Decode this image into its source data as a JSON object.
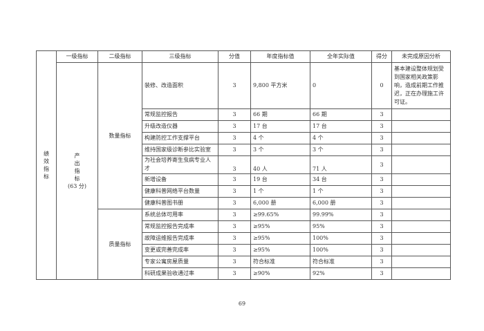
{
  "headers": [
    "一级指标",
    "二级指标",
    "三级指标",
    "分值",
    "年度指标值",
    "全年实际值",
    "得分",
    "未完成原因分析"
  ],
  "category": "绩效指标",
  "level1": {
    "lines": [
      "产",
      "出",
      "指",
      "标",
      "(63 分)"
    ]
  },
  "groups": [
    {
      "name": "数量指标",
      "rows": [
        {
          "indicator": "装修、改造面积",
          "score_value": "3",
          "target": "9,800 平方米",
          "actual": "0",
          "score": "0",
          "reason": "基本建设整体规划受到国家相关政策影响，造成前期工作推迟，正在办理施工许可证。"
        },
        {
          "indicator": "常规监控报告",
          "score_value": "3",
          "target": "66 期",
          "actual": "66 期",
          "score": "3",
          "reason": ""
        },
        {
          "indicator": "升级改造仪器",
          "score_value": "3",
          "target": "17 台",
          "actual": "17 台",
          "score": "3",
          "reason": ""
        },
        {
          "indicator": "构建防控工作支撑平台",
          "score_value": "3",
          "target": "4 个",
          "actual": "4 个",
          "score": "3",
          "reason": ""
        },
        {
          "indicator": "维持国家级诊断参比实验室",
          "score_value": "3",
          "target": "3 个",
          "actual": "3 个",
          "score": "3",
          "reason": ""
        },
        {
          "indicator": "为社会培养寄生虫病专业人才",
          "score_value": "3",
          "target": "40 人",
          "actual": "71 人",
          "score": "3",
          "reason": ""
        },
        {
          "indicator": "新增设备",
          "score_value": "3",
          "target": "19 台",
          "actual": "34 台",
          "score": "3",
          "reason": ""
        },
        {
          "indicator": "健康科普网络平台数量",
          "score_value": "3",
          "target": "1 个",
          "actual": "1 个",
          "score": "3",
          "reason": ""
        },
        {
          "indicator": "健康科普图书册",
          "score_value": "3",
          "target": "6,000 册",
          "actual": "6,000 册",
          "score": "3",
          "reason": ""
        }
      ]
    },
    {
      "name": "质量指标",
      "rows": [
        {
          "indicator": "系统总体可用率",
          "score_value": "3",
          "target": "≥99.65%",
          "actual": "99.99%",
          "score": "3",
          "reason": ""
        },
        {
          "indicator": "常规监控报告完成率",
          "score_value": "3",
          "target": "≥95%",
          "actual": "95%",
          "score": "3",
          "reason": ""
        },
        {
          "indicator": "故障运维报告完成率",
          "score_value": "3",
          "target": "≥95%",
          "actual": "100%",
          "score": "3",
          "reason": ""
        },
        {
          "indicator": "变更或完善完成率",
          "score_value": "3",
          "target": "≥95%",
          "actual": "100%",
          "score": "3",
          "reason": ""
        },
        {
          "indicator": "专家公寓房屋质量",
          "score_value": "3",
          "target": "符合标准",
          "actual": "符合标准",
          "score": "3",
          "reason": ""
        },
        {
          "indicator": "科研成果验收通过率",
          "score_value": "3",
          "target": "≥90%",
          "actual": "92%",
          "score": "3",
          "reason": ""
        }
      ]
    }
  ],
  "page_number": "69"
}
